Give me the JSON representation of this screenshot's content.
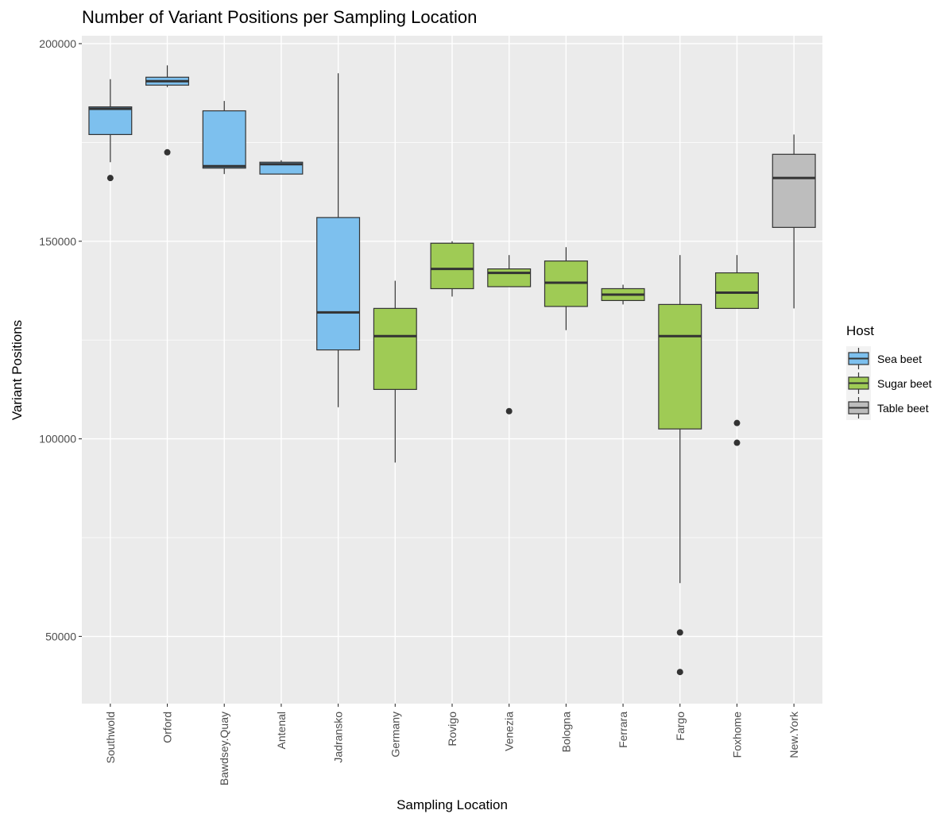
{
  "chart_data": {
    "type": "boxplot",
    "title": "Number of Variant Positions per Sampling Location",
    "xlabel": "Sampling Location",
    "ylabel": "Variant Positions",
    "ylim": [
      33000,
      202000
    ],
    "yticks": [
      50000,
      100000,
      150000,
      200000
    ],
    "grid": true,
    "legend": {
      "title": "Host",
      "position": "right",
      "entries": [
        {
          "name": "Sea beet",
          "color": "#7dc0ee"
        },
        {
          "name": "Sugar beet",
          "color": "#9fcb55"
        },
        {
          "name": "Table beet",
          "color": "#bdbdbd"
        }
      ]
    },
    "categories": [
      "Southwold",
      "Orford",
      "Bawdsey.Quay",
      "Antenal",
      "Jadransko",
      "Germany",
      "Rovigo",
      "Venezia",
      "Bologna",
      "Ferrara",
      "Fargo",
      "Foxhome",
      "New.York"
    ],
    "boxes": [
      {
        "location": "Southwold",
        "host": "Sea beet",
        "whisker_low": 170000,
        "q1": 177000,
        "median": 183500,
        "q3": 184000,
        "whisker_high": 191000,
        "outliers": [
          166000
        ]
      },
      {
        "location": "Orford",
        "host": "Sea beet",
        "whisker_low": 189000,
        "q1": 189500,
        "median": 190500,
        "q3": 191500,
        "whisker_high": 194500,
        "outliers": [
          172500
        ]
      },
      {
        "location": "Bawdsey.Quay",
        "host": "Sea beet",
        "whisker_low": 167000,
        "q1": 168500,
        "median": 169000,
        "q3": 183000,
        "whisker_high": 185500,
        "outliers": []
      },
      {
        "location": "Antenal",
        "host": "Sea beet",
        "whisker_low": 167000,
        "q1": 167000,
        "median": 169500,
        "q3": 170000,
        "whisker_high": 170500,
        "outliers": []
      },
      {
        "location": "Jadransko",
        "host": "Sea beet",
        "whisker_low": 108000,
        "q1": 122500,
        "median": 132000,
        "q3": 156000,
        "whisker_high": 192500,
        "outliers": []
      },
      {
        "location": "Germany",
        "host": "Sugar beet",
        "whisker_low": 94000,
        "q1": 112500,
        "median": 126000,
        "q3": 133000,
        "whisker_high": 140000,
        "outliers": []
      },
      {
        "location": "Rovigo",
        "host": "Sugar beet",
        "whisker_low": 136000,
        "q1": 138000,
        "median": 143000,
        "q3": 149500,
        "whisker_high": 150000,
        "outliers": []
      },
      {
        "location": "Venezia",
        "host": "Sugar beet",
        "whisker_low": 138500,
        "q1": 138500,
        "median": 142000,
        "q3": 143000,
        "whisker_high": 146500,
        "outliers": [
          107000
        ]
      },
      {
        "location": "Bologna",
        "host": "Sugar beet",
        "whisker_low": 127500,
        "q1": 133500,
        "median": 139500,
        "q3": 145000,
        "whisker_high": 148500,
        "outliers": []
      },
      {
        "location": "Ferrara",
        "host": "Sugar beet",
        "whisker_low": 134000,
        "q1": 135000,
        "median": 136500,
        "q3": 138000,
        "whisker_high": 139000,
        "outliers": []
      },
      {
        "location": "Fargo",
        "host": "Sugar beet",
        "whisker_low": 63500,
        "q1": 102500,
        "median": 126000,
        "q3": 134000,
        "whisker_high": 146500,
        "outliers": [
          51000,
          41000
        ]
      },
      {
        "location": "Foxhome",
        "host": "Sugar beet",
        "whisker_low": 133000,
        "q1": 133000,
        "median": 137000,
        "q3": 142000,
        "whisker_high": 146500,
        "outliers": [
          104000,
          99000
        ]
      },
      {
        "location": "New.York",
        "host": "Table beet",
        "whisker_low": 133000,
        "q1": 153500,
        "median": 166000,
        "q3": 172000,
        "whisker_high": 177000,
        "outliers": []
      }
    ]
  }
}
